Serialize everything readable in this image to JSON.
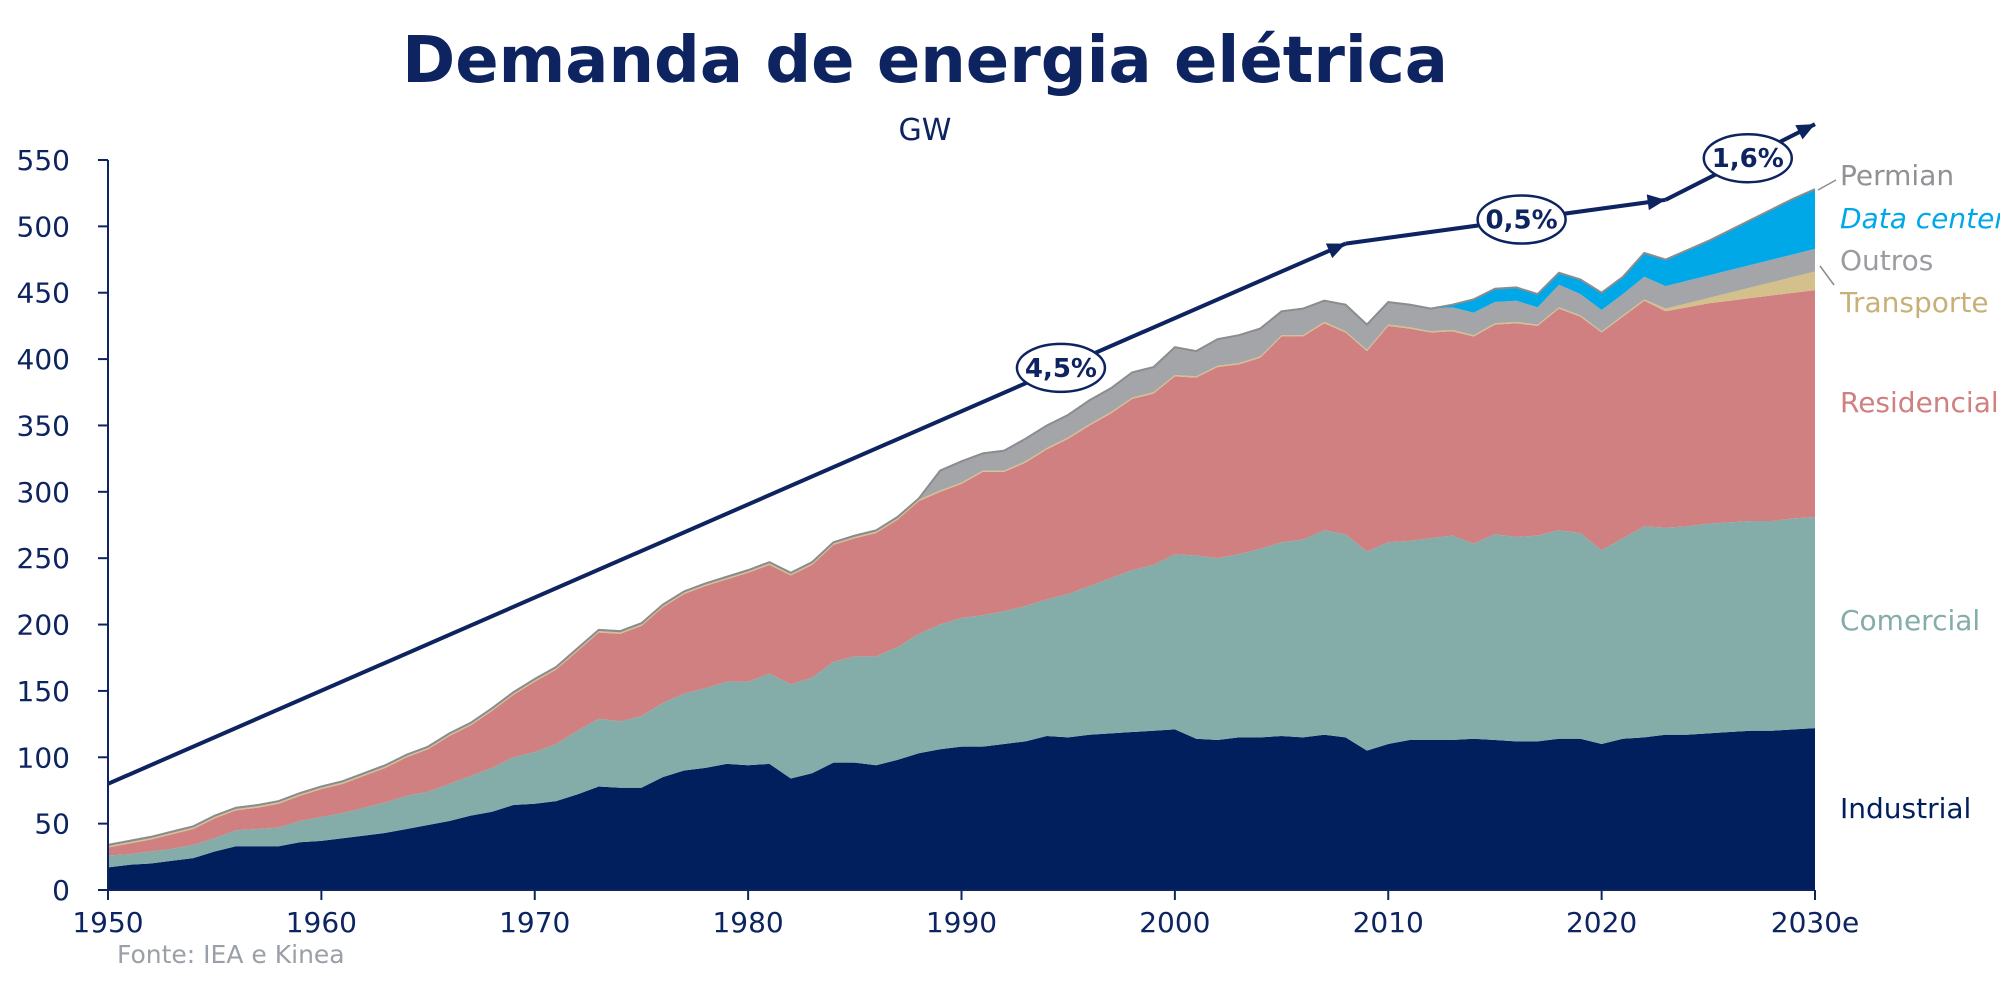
{
  "title": "Demanda de energia elétrica",
  "subtitle": "GW",
  "source": "Fonte: IEA e Kinea",
  "colors": {
    "Industrial": "#001f5c",
    "Comercial": "#84aca8",
    "Residencial": "#d08080",
    "Transporte": "#d4c08a",
    "Outros": "#a3a5a8",
    "Data center": "#00a8e8",
    "Permian": "#8a8c8e",
    "text": "#0d2461",
    "arrow": "#0d2461"
  },
  "growth_labels": [
    "4,5%",
    "0,5%",
    "1,6%"
  ],
  "chart_data": {
    "type": "area",
    "stacked": true,
    "title": "Demanda de energia elétrica",
    "subtitle": "GW",
    "x_range": [
      1950,
      2030
    ],
    "xticks": [
      1950,
      1960,
      1970,
      1980,
      1990,
      2000,
      2010,
      2020,
      2030
    ],
    "xtick_labels": [
      "1950",
      "1960",
      "1970",
      "1980",
      "1990",
      "2000",
      "2010",
      "2020",
      "2030e"
    ],
    "ylim": [
      0,
      550
    ],
    "yticks": [
      0,
      50,
      100,
      150,
      200,
      250,
      300,
      350,
      400,
      450,
      500,
      550
    ],
    "grid": false,
    "legend": "right-inline",
    "x": [
      1950,
      1951,
      1952,
      1953,
      1954,
      1955,
      1956,
      1957,
      1958,
      1959,
      1960,
      1961,
      1962,
      1963,
      1964,
      1965,
      1966,
      1967,
      1968,
      1969,
      1970,
      1971,
      1972,
      1973,
      1974,
      1975,
      1976,
      1977,
      1978,
      1979,
      1980,
      1981,
      1982,
      1983,
      1984,
      1985,
      1986,
      1987,
      1988,
      1989,
      1990,
      1991,
      1992,
      1993,
      1994,
      1995,
      1996,
      1997,
      1998,
      1999,
      2000,
      2001,
      2002,
      2003,
      2004,
      2005,
      2006,
      2007,
      2008,
      2009,
      2010,
      2011,
      2012,
      2013,
      2014,
      2015,
      2016,
      2017,
      2018,
      2019,
      2020,
      2021,
      2022,
      2023,
      2024,
      2025,
      2026,
      2027,
      2028,
      2029,
      2030
    ],
    "totals": [
      34,
      37,
      40,
      44,
      48,
      56,
      62,
      64,
      67,
      73,
      78,
      82,
      88,
      94,
      102,
      108,
      118,
      126,
      137,
      149,
      159,
      168,
      182,
      196,
      194,
      200,
      213,
      224,
      230,
      235,
      240,
      245,
      238,
      246,
      261,
      265,
      270,
      281,
      295,
      316,
      323,
      329,
      331,
      340,
      350,
      358,
      369,
      378,
      390,
      398,
      410,
      406,
      415,
      418,
      423,
      436,
      438,
      444,
      441,
      426,
      443,
      441,
      438,
      441,
      445,
      453,
      454,
      449,
      465,
      460,
      450,
      462,
      480,
      475,
      482,
      489,
      497,
      505,
      513,
      521,
      528
    ],
    "series": [
      {
        "name": "Industrial",
        "values": [
          17,
          19,
          20,
          22,
          24,
          29,
          33,
          33,
          33,
          36,
          37,
          39,
          41,
          43,
          46,
          49,
          52,
          56,
          59,
          64,
          65,
          67,
          72,
          78,
          77,
          77,
          85,
          90,
          92,
          95,
          94,
          95,
          84,
          88,
          96,
          96,
          94,
          98,
          103,
          106,
          108,
          108,
          110,
          112,
          116,
          115,
          117,
          118,
          119,
          120,
          121,
          114,
          113,
          115,
          115,
          116,
          115,
          117,
          115,
          105,
          110,
          113,
          113,
          113,
          114,
          113,
          112,
          112,
          114,
          114,
          110,
          114,
          115,
          117,
          117,
          118,
          119,
          120,
          120,
          121,
          122
        ]
      },
      {
        "name": "Comercial",
        "values": [
          9,
          8,
          9,
          9,
          10,
          10,
          12,
          13,
          14,
          16,
          18,
          19,
          21,
          23,
          25,
          25,
          28,
          30,
          33,
          36,
          39,
          43,
          48,
          51,
          50,
          54,
          56,
          58,
          60,
          62,
          63,
          68,
          71,
          72,
          76,
          80,
          82,
          85,
          90,
          94,
          97,
          99,
          100,
          102,
          103,
          108,
          112,
          117,
          122,
          125,
          132,
          138,
          137,
          138,
          142,
          146,
          149,
          154,
          153,
          150,
          152,
          150,
          152,
          154,
          147,
          155,
          154,
          155,
          157,
          155,
          146,
          151,
          159,
          156,
          157,
          158,
          158,
          158,
          158,
          159,
          159
        ]
      },
      {
        "name": "Residencial",
        "values": [
          6,
          8,
          9,
          11,
          12,
          15,
          15,
          16,
          18,
          19,
          21,
          22,
          24,
          26,
          29,
          32,
          36,
          38,
          43,
          47,
          53,
          56,
          60,
          65,
          66,
          68,
          72,
          75,
          77,
          77,
          82,
          82,
          82,
          85,
          88,
          89,
          93,
          96,
          100,
          100,
          101,
          108,
          105,
          108,
          113,
          117,
          121,
          124,
          129,
          129,
          134,
          134,
          144,
          143,
          144,
          155,
          153,
          156,
          152,
          151,
          163,
          160,
          155,
          154,
          156,
          158,
          161,
          158,
          167,
          163,
          164,
          167,
          170,
          163,
          165,
          166,
          167,
          168,
          170,
          170,
          171
        ]
      },
      {
        "name": "Transporte",
        "values": [
          1,
          1,
          1,
          1,
          1,
          1,
          1,
          1,
          1,
          1,
          1,
          1,
          1,
          1,
          1,
          1,
          1,
          1,
          1,
          1,
          1,
          1,
          1,
          1,
          1,
          1,
          1,
          1,
          1,
          1,
          1,
          1,
          1,
          1,
          1,
          1,
          1,
          1,
          1,
          1,
          1,
          1,
          1,
          1,
          1,
          1,
          1,
          1,
          1,
          1,
          1,
          1,
          1,
          1,
          1,
          1,
          1,
          1,
          1,
          1,
          1,
          1,
          1,
          1,
          1,
          1,
          1,
          1,
          1,
          1,
          1,
          1,
          1,
          2,
          3,
          4,
          6,
          8,
          10,
          12,
          14
        ]
      },
      {
        "name": "Outros",
        "values": [
          1,
          1,
          1,
          1,
          1,
          1,
          1,
          1,
          1,
          1,
          1,
          1,
          1,
          1,
          1,
          1,
          1,
          1,
          1,
          1,
          1,
          1,
          1,
          1,
          1,
          1,
          1,
          1,
          1,
          1,
          1,
          1,
          1,
          1,
          1,
          1,
          1,
          1,
          1,
          15,
          16,
          13,
          15,
          17,
          17,
          17,
          18,
          18,
          19,
          19,
          21,
          19,
          20,
          21,
          21,
          18,
          20,
          16,
          20,
          19,
          17,
          17,
          17,
          17,
          17,
          16,
          16,
          13,
          17,
          16,
          16,
          16,
          17,
          17,
          17,
          17,
          17,
          17,
          17,
          17,
          17
        ]
      },
      {
        "name": "Data center",
        "values": [
          0,
          0,
          0,
          0,
          0,
          0,
          0,
          0,
          0,
          0,
          0,
          0,
          0,
          0,
          0,
          0,
          0,
          0,
          0,
          0,
          0,
          0,
          0,
          0,
          0,
          0,
          0,
          0,
          0,
          0,
          0,
          0,
          0,
          0,
          0,
          0,
          0,
          0,
          0,
          0,
          0,
          0,
          0,
          0,
          0,
          0,
          0,
          0,
          0,
          0,
          0,
          0,
          0,
          0,
          0,
          0,
          0,
          0,
          0,
          0,
          0,
          0,
          0,
          2,
          10,
          10,
          10,
          10,
          9,
          11,
          13,
          13,
          18,
          20,
          23,
          26,
          30,
          34,
          38,
          42,
          45
        ]
      },
      {
        "name": "Permian",
        "values": [
          0,
          0,
          0,
          0,
          0,
          0,
          0,
          0,
          0,
          0,
          0,
          0,
          0,
          0,
          0,
          0,
          0,
          0,
          0,
          0,
          0,
          0,
          0,
          0,
          0,
          0,
          0,
          0,
          0,
          0,
          0,
          0,
          0,
          0,
          0,
          0,
          0,
          0,
          0,
          0,
          0,
          0,
          0,
          0,
          0,
          0,
          0,
          0,
          0,
          0,
          0,
          0,
          0,
          0,
          0,
          0,
          0,
          0,
          0,
          0,
          0,
          0,
          0,
          0,
          0,
          0,
          0,
          0,
          0,
          0,
          0,
          0,
          0,
          0,
          0,
          0,
          0,
          0,
          0,
          0,
          0
        ]
      }
    ],
    "annotations": [
      {
        "label": "4,5%",
        "x_start": 1950,
        "y_start": 80,
        "x_end": 2008,
        "y_end": 487
      },
      {
        "label": "0,5%",
        "x_start": 2008,
        "y_start": 487,
        "x_end": 2023,
        "y_end": 520
      },
      {
        "label": "1,6%",
        "x_start": 2023,
        "y_start": 520,
        "x_end": 2030,
        "y_end": 577
      }
    ]
  }
}
